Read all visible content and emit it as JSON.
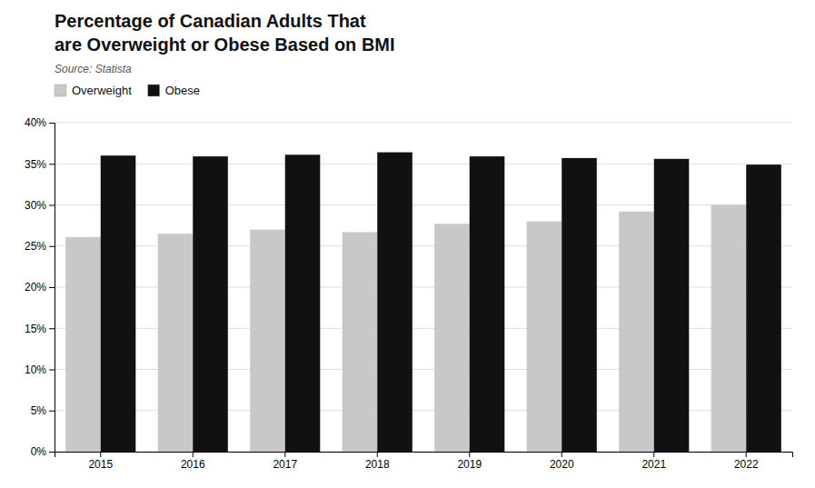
{
  "chart_data": {
    "type": "bar",
    "title": [
      "Percentage of Canadian Adults That",
      "are Overweight or Obese Based on BMI"
    ],
    "source": "Source: Statista",
    "categories": [
      "2015",
      "2016",
      "2017",
      "2018",
      "2019",
      "2020",
      "2021",
      "2022"
    ],
    "series": [
      {
        "name": "Overweight",
        "color": "#c8c8c8",
        "values": [
          0.261,
          0.265,
          0.27,
          0.267,
          0.277,
          0.28,
          0.292,
          0.3
        ]
      },
      {
        "name": "Obese",
        "color": "#111111",
        "values": [
          0.36,
          0.359,
          0.361,
          0.364,
          0.359,
          0.357,
          0.356,
          0.349
        ]
      }
    ],
    "ylim": [
      0,
      0.4
    ],
    "yticks": [
      {
        "value": 0,
        "label": "0%"
      },
      {
        "value": 0.05,
        "label": "5%"
      },
      {
        "value": 0.1,
        "label": "10%"
      },
      {
        "value": 0.15,
        "label": "15%"
      },
      {
        "value": 0.2,
        "label": "20%"
      },
      {
        "value": 0.25,
        "label": "25%"
      },
      {
        "value": 0.3,
        "label": "30%"
      },
      {
        "value": 0.35,
        "label": "35%"
      },
      {
        "value": 0.4,
        "label": "40%"
      }
    ],
    "grid": true,
    "legend": "upper left"
  }
}
